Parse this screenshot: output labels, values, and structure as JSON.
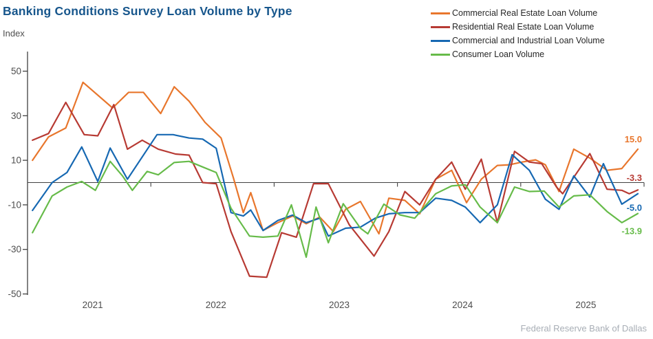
{
  "header": {
    "title": "Banking Conditions Survey Loan Volume by Type"
  },
  "footer": {
    "source": "Federal Reserve Bank of Dallas"
  },
  "chart_data": {
    "type": "line",
    "title": "Banking Conditions Survey Loan Volume by Type",
    "ylabel": "Index",
    "xlabel": "",
    "grid": false,
    "legend_position": "top-right",
    "zero_line": true,
    "x_range": [
      2021,
      2026
    ],
    "ylim": [
      -52,
      56
    ],
    "y_ticks": [
      50,
      30,
      10,
      -10,
      -30,
      -50
    ],
    "x_tick_labels": [
      "2021",
      "2022",
      "2023",
      "2024",
      "2025"
    ],
    "x_year_boundaries": [
      2022,
      2023,
      2024,
      2025,
      2026
    ],
    "series": [
      {
        "name": "Commercial Real Estate Loan Volume",
        "color": "#E8762C",
        "end_label": "15.0",
        "label_dy": -10,
        "points": [
          [
            2021.04,
            10
          ],
          [
            2021.17,
            20.5
          ],
          [
            2021.31,
            24.5
          ],
          [
            2021.45,
            45
          ],
          [
            2021.69,
            33.5
          ],
          [
            2021.82,
            40.5
          ],
          [
            2021.94,
            40.5
          ],
          [
            2022.08,
            31
          ],
          [
            2022.19,
            43
          ],
          [
            2022.31,
            36.5
          ],
          [
            2022.44,
            27
          ],
          [
            2022.57,
            20
          ],
          [
            2022.67,
            2
          ],
          [
            2022.75,
            -13.5
          ],
          [
            2022.81,
            -4.5
          ],
          [
            2022.91,
            -21.5
          ],
          [
            2023.03,
            -18
          ],
          [
            2023.15,
            -15
          ],
          [
            2023.26,
            -18.5
          ],
          [
            2023.37,
            -15.5
          ],
          [
            2023.48,
            -22
          ],
          [
            2023.58,
            -12
          ],
          [
            2023.7,
            -8.5
          ],
          [
            2023.85,
            -23
          ],
          [
            2023.93,
            -7
          ],
          [
            2024.06,
            -8
          ],
          [
            2024.18,
            -14
          ],
          [
            2024.31,
            1.5
          ],
          [
            2024.44,
            5.5
          ],
          [
            2024.56,
            -9
          ],
          [
            2024.68,
            1.5
          ],
          [
            2024.81,
            7.7
          ],
          [
            2024.91,
            8
          ],
          [
            2025.01,
            9.2
          ],
          [
            2025.12,
            10.2
          ],
          [
            2025.2,
            8
          ],
          [
            2025.31,
            -4
          ],
          [
            2025.43,
            15
          ],
          [
            2025.56,
            11
          ],
          [
            2025.7,
            5.5
          ],
          [
            2025.82,
            6.3
          ],
          [
            2025.95,
            15
          ]
        ]
      },
      {
        "name": "Residential Real Estate Loan Volume",
        "color": "#B73A33",
        "end_label": "-3.3",
        "label_dy": -13,
        "points": [
          [
            2021.04,
            19
          ],
          [
            2021.17,
            22
          ],
          [
            2021.31,
            36
          ],
          [
            2021.46,
            21.5
          ],
          [
            2021.57,
            21
          ],
          [
            2021.7,
            35
          ],
          [
            2021.81,
            15
          ],
          [
            2021.93,
            19
          ],
          [
            2022.06,
            15
          ],
          [
            2022.2,
            12.8
          ],
          [
            2022.31,
            12.3
          ],
          [
            2022.42,
            0
          ],
          [
            2022.53,
            -0.5
          ],
          [
            2022.65,
            -22
          ],
          [
            2022.8,
            -42
          ],
          [
            2022.94,
            -42.5
          ],
          [
            2023.06,
            -22.5
          ],
          [
            2023.18,
            -24.5
          ],
          [
            2023.32,
            -0.5
          ],
          [
            2023.44,
            -0.5
          ],
          [
            2023.61,
            -19
          ],
          [
            2023.81,
            -33
          ],
          [
            2023.93,
            -22
          ],
          [
            2024.06,
            -4
          ],
          [
            2024.18,
            -10
          ],
          [
            2024.31,
            1.5
          ],
          [
            2024.44,
            9.2
          ],
          [
            2024.55,
            -3
          ],
          [
            2024.68,
            10.5
          ],
          [
            2024.81,
            -18
          ],
          [
            2024.95,
            14
          ],
          [
            2025.07,
            9.2
          ],
          [
            2025.17,
            8.5
          ],
          [
            2025.29,
            -2
          ],
          [
            2025.34,
            -5
          ],
          [
            2025.56,
            13
          ],
          [
            2025.7,
            -3
          ],
          [
            2025.82,
            -3.5
          ],
          [
            2025.88,
            -5
          ],
          [
            2025.95,
            -3.3
          ]
        ]
      },
      {
        "name": "Commercial and Industrial Loan Volume",
        "color": "#1668B2",
        "end_label": "-5.0",
        "label_dy": 25,
        "points": [
          [
            2021.04,
            -12.5
          ],
          [
            2021.2,
            0
          ],
          [
            2021.32,
            4.5
          ],
          [
            2021.44,
            16
          ],
          [
            2021.57,
            0.5
          ],
          [
            2021.67,
            15.5
          ],
          [
            2021.81,
            1.5
          ],
          [
            2022.05,
            21.5
          ],
          [
            2022.18,
            21.5
          ],
          [
            2022.31,
            20
          ],
          [
            2022.42,
            19.5
          ],
          [
            2022.53,
            15.4
          ],
          [
            2022.65,
            -13.5
          ],
          [
            2022.75,
            -15
          ],
          [
            2022.81,
            -12.3
          ],
          [
            2022.91,
            -21.5
          ],
          [
            2023.03,
            -17
          ],
          [
            2023.15,
            -14.6
          ],
          [
            2023.26,
            -18
          ],
          [
            2023.37,
            -16
          ],
          [
            2023.44,
            -24
          ],
          [
            2023.58,
            -20.5
          ],
          [
            2023.7,
            -20
          ],
          [
            2023.82,
            -16
          ],
          [
            2023.93,
            -14
          ],
          [
            2024.06,
            -13.5
          ],
          [
            2024.18,
            -13.5
          ],
          [
            2024.31,
            -7
          ],
          [
            2024.44,
            -8
          ],
          [
            2024.55,
            -11
          ],
          [
            2024.67,
            -18
          ],
          [
            2024.81,
            -10
          ],
          [
            2024.93,
            12.5
          ],
          [
            2025.07,
            5.5
          ],
          [
            2025.2,
            -7.5
          ],
          [
            2025.31,
            -12
          ],
          [
            2025.43,
            3
          ],
          [
            2025.56,
            -6.5
          ],
          [
            2025.67,
            8.5
          ],
          [
            2025.82,
            -9.7
          ],
          [
            2025.95,
            -5.0
          ]
        ]
      },
      {
        "name": "Consumer Loan Volume",
        "color": "#66BB49",
        "end_label": "-13.9",
        "label_dy": 30,
        "points": [
          [
            2021.04,
            -22.5
          ],
          [
            2021.2,
            -6
          ],
          [
            2021.32,
            -2
          ],
          [
            2021.44,
            0.5
          ],
          [
            2021.55,
            -3.5
          ],
          [
            2021.67,
            9.5
          ],
          [
            2021.77,
            3
          ],
          [
            2021.85,
            -3.5
          ],
          [
            2021.97,
            5
          ],
          [
            2022.06,
            3.5
          ],
          [
            2022.19,
            9
          ],
          [
            2022.31,
            9.5
          ],
          [
            2022.42,
            7
          ],
          [
            2022.53,
            4.5
          ],
          [
            2022.65,
            -11.5
          ],
          [
            2022.8,
            -24
          ],
          [
            2022.91,
            -24.5
          ],
          [
            2023.03,
            -24
          ],
          [
            2023.14,
            -10
          ],
          [
            2023.26,
            -33.5
          ],
          [
            2023.34,
            -11
          ],
          [
            2023.44,
            -27
          ],
          [
            2023.56,
            -9.5
          ],
          [
            2023.7,
            -20.5
          ],
          [
            2023.76,
            -23
          ],
          [
            2023.89,
            -9.7
          ],
          [
            2024.02,
            -14.5
          ],
          [
            2024.14,
            -16
          ],
          [
            2024.31,
            -5
          ],
          [
            2024.44,
            -1.5
          ],
          [
            2024.55,
            -1
          ],
          [
            2024.67,
            -11
          ],
          [
            2024.81,
            -18
          ],
          [
            2024.95,
            -2
          ],
          [
            2025.07,
            -4
          ],
          [
            2025.19,
            -3.8
          ],
          [
            2025.31,
            -11
          ],
          [
            2025.43,
            -6
          ],
          [
            2025.56,
            -5.5
          ],
          [
            2025.7,
            -13
          ],
          [
            2025.82,
            -18
          ],
          [
            2025.95,
            -13.9
          ]
        ]
      }
    ]
  }
}
